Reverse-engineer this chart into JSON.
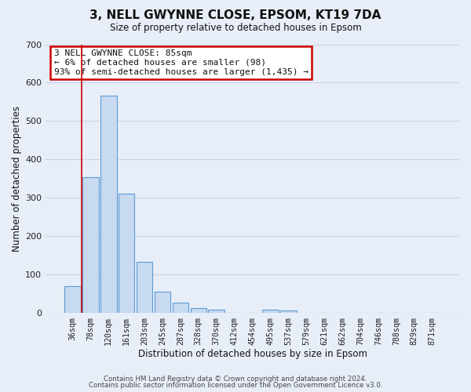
{
  "title": "3, NELL GWYNNE CLOSE, EPSOM, KT19 7DA",
  "subtitle": "Size of property relative to detached houses in Epsom",
  "xlabel": "Distribution of detached houses by size in Epsom",
  "ylabel": "Number of detached properties",
  "bar_labels": [
    "36sqm",
    "78sqm",
    "120sqm",
    "161sqm",
    "203sqm",
    "245sqm",
    "287sqm",
    "328sqm",
    "370sqm",
    "412sqm",
    "454sqm",
    "495sqm",
    "537sqm",
    "579sqm",
    "621sqm",
    "662sqm",
    "704sqm",
    "746sqm",
    "788sqm",
    "829sqm",
    "871sqm"
  ],
  "bar_values": [
    70,
    355,
    567,
    312,
    133,
    57,
    27,
    13,
    10,
    0,
    0,
    10,
    7,
    0,
    0,
    0,
    0,
    0,
    0,
    0,
    0
  ],
  "bar_color": "#c8daf0",
  "bar_edge_color": "#5b9bd5",
  "bar_edge_width": 0.8,
  "vline_x": 0.5,
  "vline_color": "#cc0000",
  "annotation_line1": "3 NELL GWYNNE CLOSE: 85sqm",
  "annotation_line2": "← 6% of detached houses are smaller (98)",
  "annotation_line3": "93% of semi-detached houses are larger (1,435) →",
  "annotation_box_color": "#ffffff",
  "annotation_box_edge_color": "#cc0000",
  "ylim": [
    0,
    700
  ],
  "yticks": [
    0,
    100,
    200,
    300,
    400,
    500,
    600,
    700
  ],
  "grid_color": "#c8d4e8",
  "background_color": "#e8eef8",
  "footer_line1": "Contains HM Land Registry data © Crown copyright and database right 2024.",
  "footer_line2": "Contains public sector information licensed under the Open Government Licence v3.0."
}
